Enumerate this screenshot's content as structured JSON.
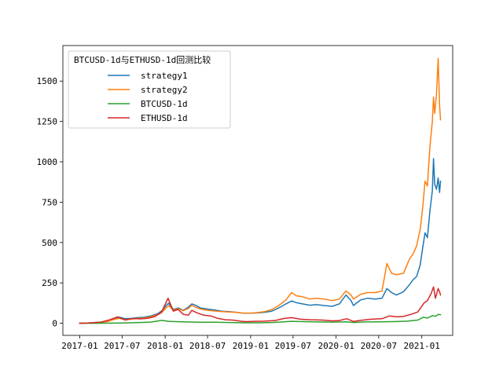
{
  "chart_data": {
    "type": "line",
    "legend_title": "BTCUSD-1d与ETHUSD-1d回测比较",
    "legend_position": "top-left",
    "grid": false,
    "xlabel": "",
    "ylabel": "",
    "xlim": [
      "2016-10-21",
      "2021-05-13"
    ],
    "ylim": [
      -75,
      1720
    ],
    "x_ticks": [
      {
        "date": "2017-01-01",
        "label": "2017-01"
      },
      {
        "date": "2017-07-01",
        "label": "2017-07"
      },
      {
        "date": "2018-01-01",
        "label": "2018-01"
      },
      {
        "date": "2018-07-01",
        "label": "2018-07"
      },
      {
        "date": "2019-01-01",
        "label": "2019-01"
      },
      {
        "date": "2019-07-01",
        "label": "2019-07"
      },
      {
        "date": "2020-01-01",
        "label": "2020-01"
      },
      {
        "date": "2020-07-01",
        "label": "2020-07"
      },
      {
        "date": "2021-01-01",
        "label": "2021-01"
      }
    ],
    "y_ticks": [
      {
        "value": 0,
        "label": "0"
      },
      {
        "value": 250,
        "label": "250"
      },
      {
        "value": 500,
        "label": "500"
      },
      {
        "value": 750,
        "label": "750"
      },
      {
        "value": 1000,
        "label": "1000"
      },
      {
        "value": 1250,
        "label": "1250"
      },
      {
        "value": 1500,
        "label": "1500"
      }
    ],
    "series": [
      {
        "name": "strategy1",
        "color": "#1f77b4",
        "points": [
          [
            "2017-01-01",
            1
          ],
          [
            "2017-02-01",
            2
          ],
          [
            "2017-03-01",
            4
          ],
          [
            "2017-04-01",
            6
          ],
          [
            "2017-05-01",
            15
          ],
          [
            "2017-06-01",
            32
          ],
          [
            "2017-06-20",
            38
          ],
          [
            "2017-07-15",
            28
          ],
          [
            "2017-08-10",
            30
          ],
          [
            "2017-09-05",
            35
          ],
          [
            "2017-10-01",
            37
          ],
          [
            "2017-11-01",
            45
          ],
          [
            "2017-12-01",
            60
          ],
          [
            "2017-12-20",
            80
          ],
          [
            "2018-01-05",
            110
          ],
          [
            "2018-01-15",
            125
          ],
          [
            "2018-02-05",
            85
          ],
          [
            "2018-02-25",
            95
          ],
          [
            "2018-03-20",
            80
          ],
          [
            "2018-04-10",
            100
          ],
          [
            "2018-04-25",
            120
          ],
          [
            "2018-05-10",
            112
          ],
          [
            "2018-06-01",
            95
          ],
          [
            "2018-07-01",
            88
          ],
          [
            "2018-08-01",
            82
          ],
          [
            "2018-09-01",
            75
          ],
          [
            "2018-10-01",
            72
          ],
          [
            "2018-11-01",
            68
          ],
          [
            "2018-12-01",
            62
          ],
          [
            "2019-01-01",
            62
          ],
          [
            "2019-02-01",
            64
          ],
          [
            "2019-03-01",
            68
          ],
          [
            "2019-04-01",
            75
          ],
          [
            "2019-05-01",
            95
          ],
          [
            "2019-06-01",
            120
          ],
          [
            "2019-06-25",
            138
          ],
          [
            "2019-07-15",
            128
          ],
          [
            "2019-08-10",
            120
          ],
          [
            "2019-09-10",
            112
          ],
          [
            "2019-10-10",
            115
          ],
          [
            "2019-11-10",
            110
          ],
          [
            "2019-12-15",
            105
          ],
          [
            "2020-01-15",
            120
          ],
          [
            "2020-02-12",
            175
          ],
          [
            "2020-03-05",
            140
          ],
          [
            "2020-03-15",
            110
          ],
          [
            "2020-04-15",
            145
          ],
          [
            "2020-05-15",
            155
          ],
          [
            "2020-06-15",
            150
          ],
          [
            "2020-07-15",
            155
          ],
          [
            "2020-08-05",
            215
          ],
          [
            "2020-08-25",
            190
          ],
          [
            "2020-09-15",
            175
          ],
          [
            "2020-10-15",
            195
          ],
          [
            "2020-11-10",
            240
          ],
          [
            "2020-11-25",
            270
          ],
          [
            "2020-12-10",
            290
          ],
          [
            "2020-12-25",
            360
          ],
          [
            "2021-01-05",
            470
          ],
          [
            "2021-01-15",
            560
          ],
          [
            "2021-01-25",
            530
          ],
          [
            "2021-02-05",
            700
          ],
          [
            "2021-02-15",
            820
          ],
          [
            "2021-02-20",
            1020
          ],
          [
            "2021-02-25",
            860
          ],
          [
            "2021-03-05",
            830
          ],
          [
            "2021-03-12",
            900
          ],
          [
            "2021-03-18",
            810
          ],
          [
            "2021-03-22",
            880
          ]
        ]
      },
      {
        "name": "strategy2",
        "color": "#ff7f0e",
        "points": [
          [
            "2017-01-01",
            1
          ],
          [
            "2017-02-01",
            2
          ],
          [
            "2017-03-01",
            3
          ],
          [
            "2017-04-01",
            5
          ],
          [
            "2017-05-01",
            12
          ],
          [
            "2017-06-01",
            25
          ],
          [
            "2017-06-20",
            30
          ],
          [
            "2017-07-15",
            22
          ],
          [
            "2017-08-10",
            25
          ],
          [
            "2017-09-05",
            30
          ],
          [
            "2017-10-01",
            32
          ],
          [
            "2017-11-01",
            40
          ],
          [
            "2017-12-01",
            55
          ],
          [
            "2017-12-20",
            70
          ],
          [
            "2018-01-05",
            95
          ],
          [
            "2018-01-15",
            110
          ],
          [
            "2018-02-05",
            80
          ],
          [
            "2018-02-25",
            90
          ],
          [
            "2018-03-20",
            78
          ],
          [
            "2018-04-10",
            92
          ],
          [
            "2018-04-25",
            112
          ],
          [
            "2018-05-10",
            100
          ],
          [
            "2018-06-01",
            88
          ],
          [
            "2018-07-01",
            80
          ],
          [
            "2018-08-01",
            76
          ],
          [
            "2018-09-01",
            72
          ],
          [
            "2018-10-01",
            70
          ],
          [
            "2018-11-01",
            67
          ],
          [
            "2018-12-01",
            63
          ],
          [
            "2019-01-01",
            63
          ],
          [
            "2019-02-01",
            66
          ],
          [
            "2019-03-01",
            72
          ],
          [
            "2019-04-01",
            85
          ],
          [
            "2019-05-01",
            110
          ],
          [
            "2019-06-01",
            145
          ],
          [
            "2019-06-25",
            190
          ],
          [
            "2019-07-15",
            170
          ],
          [
            "2019-08-10",
            165
          ],
          [
            "2019-09-10",
            150
          ],
          [
            "2019-10-10",
            155
          ],
          [
            "2019-11-10",
            150
          ],
          [
            "2019-12-15",
            140
          ],
          [
            "2020-01-15",
            150
          ],
          [
            "2020-02-12",
            200
          ],
          [
            "2020-03-05",
            175
          ],
          [
            "2020-03-15",
            150
          ],
          [
            "2020-04-15",
            180
          ],
          [
            "2020-05-15",
            190
          ],
          [
            "2020-06-15",
            190
          ],
          [
            "2020-07-15",
            200
          ],
          [
            "2020-08-05",
            370
          ],
          [
            "2020-08-25",
            310
          ],
          [
            "2020-09-15",
            300
          ],
          [
            "2020-10-15",
            310
          ],
          [
            "2020-11-10",
            400
          ],
          [
            "2020-11-25",
            430
          ],
          [
            "2020-12-10",
            480
          ],
          [
            "2020-12-25",
            580
          ],
          [
            "2021-01-05",
            720
          ],
          [
            "2021-01-15",
            880
          ],
          [
            "2021-01-25",
            850
          ],
          [
            "2021-02-05",
            1100
          ],
          [
            "2021-02-15",
            1250
          ],
          [
            "2021-02-20",
            1400
          ],
          [
            "2021-02-25",
            1300
          ],
          [
            "2021-03-05",
            1420
          ],
          [
            "2021-03-12",
            1640
          ],
          [
            "2021-03-18",
            1350
          ],
          [
            "2021-03-22",
            1260
          ]
        ]
      },
      {
        "name": "BTCUSD-1d",
        "color": "#2ca02c",
        "points": [
          [
            "2017-01-01",
            0
          ],
          [
            "2017-03-01",
            0
          ],
          [
            "2017-05-01",
            1
          ],
          [
            "2017-07-01",
            2
          ],
          [
            "2017-09-01",
            4
          ],
          [
            "2017-11-01",
            7
          ],
          [
            "2017-12-17",
            18
          ],
          [
            "2018-01-15",
            12
          ],
          [
            "2018-02-15",
            10
          ],
          [
            "2018-04-01",
            8
          ],
          [
            "2018-06-01",
            6
          ],
          [
            "2018-08-01",
            6
          ],
          [
            "2018-10-01",
            5
          ],
          [
            "2018-12-15",
            3
          ],
          [
            "2019-02-01",
            3
          ],
          [
            "2019-04-01",
            5
          ],
          [
            "2019-06-26",
            12
          ],
          [
            "2019-08-15",
            10
          ],
          [
            "2019-10-15",
            8
          ],
          [
            "2019-12-15",
            7
          ],
          [
            "2020-02-15",
            9
          ],
          [
            "2020-03-15",
            5
          ],
          [
            "2020-05-01",
            8
          ],
          [
            "2020-07-01",
            9
          ],
          [
            "2020-09-01",
            10
          ],
          [
            "2020-11-01",
            13
          ],
          [
            "2020-12-15",
            20
          ],
          [
            "2021-01-08",
            38
          ],
          [
            "2021-01-25",
            32
          ],
          [
            "2021-02-15",
            47
          ],
          [
            "2021-02-28",
            43
          ],
          [
            "2021-03-13",
            55
          ],
          [
            "2021-03-22",
            53
          ]
        ]
      },
      {
        "name": "ETHUSD-1d",
        "color": "#d62728",
        "points": [
          [
            "2017-01-01",
            0
          ],
          [
            "2017-02-01",
            1
          ],
          [
            "2017-03-01",
            4
          ],
          [
            "2017-04-01",
            7
          ],
          [
            "2017-05-01",
            18
          ],
          [
            "2017-06-12",
            40
          ],
          [
            "2017-07-15",
            20
          ],
          [
            "2017-08-15",
            30
          ],
          [
            "2017-09-15",
            27
          ],
          [
            "2017-10-15",
            30
          ],
          [
            "2017-11-15",
            40
          ],
          [
            "2017-12-15",
            65
          ],
          [
            "2018-01-13",
            155
          ],
          [
            "2018-02-05",
            75
          ],
          [
            "2018-02-25",
            85
          ],
          [
            "2018-03-20",
            55
          ],
          [
            "2018-04-10",
            50
          ],
          [
            "2018-04-25",
            80
          ],
          [
            "2018-05-15",
            65
          ],
          [
            "2018-06-15",
            50
          ],
          [
            "2018-07-15",
            45
          ],
          [
            "2018-08-15",
            30
          ],
          [
            "2018-09-15",
            22
          ],
          [
            "2018-10-15",
            20
          ],
          [
            "2018-11-25",
            12
          ],
          [
            "2018-12-15",
            10
          ],
          [
            "2019-01-15",
            12
          ],
          [
            "2019-03-01",
            13
          ],
          [
            "2019-04-15",
            17
          ],
          [
            "2019-05-25",
            30
          ],
          [
            "2019-06-25",
            35
          ],
          [
            "2019-08-01",
            25
          ],
          [
            "2019-09-15",
            22
          ],
          [
            "2019-11-01",
            20
          ],
          [
            "2019-12-15",
            15
          ],
          [
            "2020-01-15",
            17
          ],
          [
            "2020-02-15",
            28
          ],
          [
            "2020-03-15",
            11
          ],
          [
            "2020-04-15",
            18
          ],
          [
            "2020-06-01",
            25
          ],
          [
            "2020-07-15",
            28
          ],
          [
            "2020-08-15",
            45
          ],
          [
            "2020-09-15",
            40
          ],
          [
            "2020-10-15",
            42
          ],
          [
            "2020-11-15",
            55
          ],
          [
            "2020-12-15",
            70
          ],
          [
            "2021-01-10",
            125
          ],
          [
            "2021-01-25",
            140
          ],
          [
            "2021-02-10",
            185
          ],
          [
            "2021-02-20",
            225
          ],
          [
            "2021-02-28",
            155
          ],
          [
            "2021-03-12",
            215
          ],
          [
            "2021-03-18",
            195
          ],
          [
            "2021-03-22",
            175
          ]
        ]
      }
    ]
  }
}
